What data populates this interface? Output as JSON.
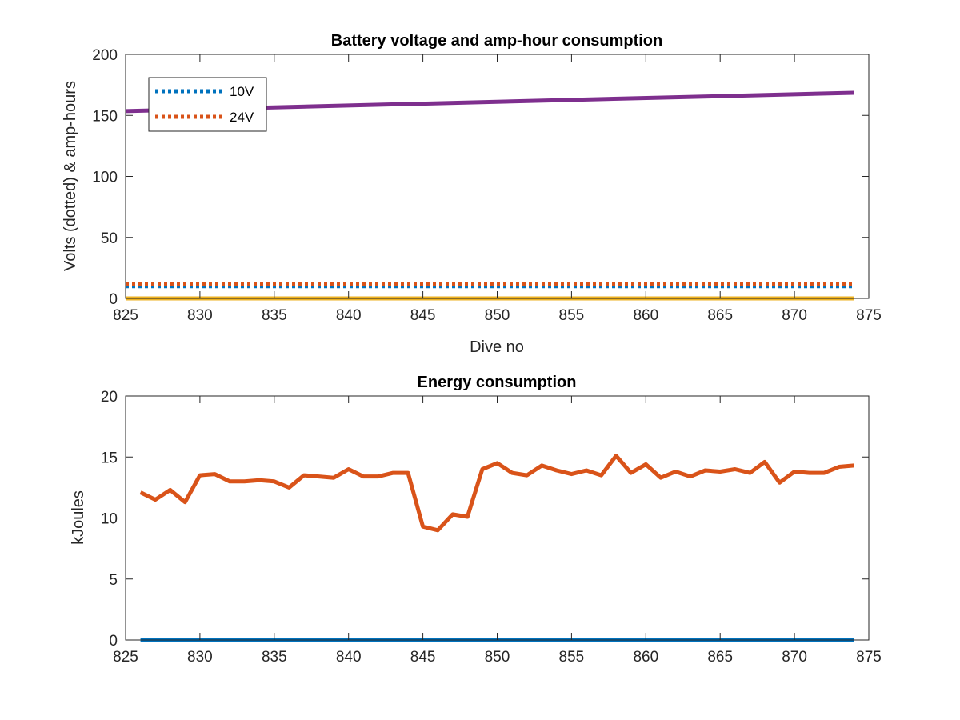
{
  "chart_data": [
    {
      "type": "line",
      "title": "Battery voltage and amp-hour consumption",
      "xlabel": "Dive no",
      "ylabel": "Volts (dotted) & amp-hours",
      "xlim": [
        825,
        875
      ],
      "ylim": [
        0,
        200
      ],
      "xticks": [
        "825",
        "830",
        "835",
        "840",
        "845",
        "850",
        "855",
        "860",
        "865",
        "870",
        "875"
      ],
      "yticks": [
        "0",
        "50",
        "100",
        "150",
        "200"
      ],
      "legend_position": "top-left",
      "series": [
        {
          "name": "10V",
          "style": "dotted",
          "color": "#0072BD",
          "x": [
            825,
            874
          ],
          "y": [
            10,
            10
          ]
        },
        {
          "name": "24V",
          "style": "dotted",
          "color": "#D95319",
          "x": [
            825,
            874
          ],
          "y": [
            12,
            12
          ]
        },
        {
          "style": "solid",
          "color": "#7E2F8E",
          "x": [
            825,
            874
          ],
          "y": [
            153.5,
            168.5
          ]
        },
        {
          "style": "solid",
          "color": "#EDB120",
          "x": [
            825,
            874
          ],
          "y": [
            0,
            0
          ]
        }
      ]
    },
    {
      "type": "line",
      "title": "Energy consumption",
      "xlabel": "",
      "ylabel": "kJoules",
      "xlim": [
        825,
        875
      ],
      "ylim": [
        0,
        20
      ],
      "xticks": [
        "825",
        "830",
        "835",
        "840",
        "845",
        "850",
        "855",
        "860",
        "865",
        "870",
        "875"
      ],
      "yticks": [
        "0",
        "5",
        "10",
        "15",
        "20"
      ],
      "series": [
        {
          "style": "solid",
          "color": "#D95319",
          "x": [
            826,
            827,
            828,
            829,
            830,
            831,
            832,
            833,
            834,
            835,
            836,
            837,
            838,
            839,
            840,
            841,
            842,
            843,
            844,
            845,
            846,
            847,
            848,
            849,
            850,
            851,
            852,
            853,
            854,
            855,
            856,
            857,
            858,
            859,
            860,
            861,
            862,
            863,
            864,
            865,
            866,
            867,
            868,
            869,
            870,
            871,
            872,
            873,
            874
          ],
          "y": [
            12.1,
            11.5,
            12.3,
            11.3,
            13.5,
            13.6,
            13.0,
            13.0,
            13.1,
            13.0,
            12.5,
            13.5,
            13.4,
            13.3,
            14.0,
            13.4,
            13.4,
            13.7,
            13.7,
            9.3,
            9.0,
            10.3,
            10.1,
            14.0,
            14.5,
            13.7,
            13.5,
            14.3,
            13.9,
            13.6,
            13.9,
            13.5,
            15.1,
            13.7,
            14.4,
            13.3,
            13.8,
            13.4,
            13.9,
            13.8,
            14.0,
            13.7,
            14.6,
            12.9,
            13.8,
            13.7,
            13.7,
            14.2,
            14.3
          ]
        },
        {
          "style": "solid",
          "color": "#0072BD",
          "x": [
            826,
            874
          ],
          "y": [
            0,
            0
          ]
        }
      ]
    }
  ]
}
